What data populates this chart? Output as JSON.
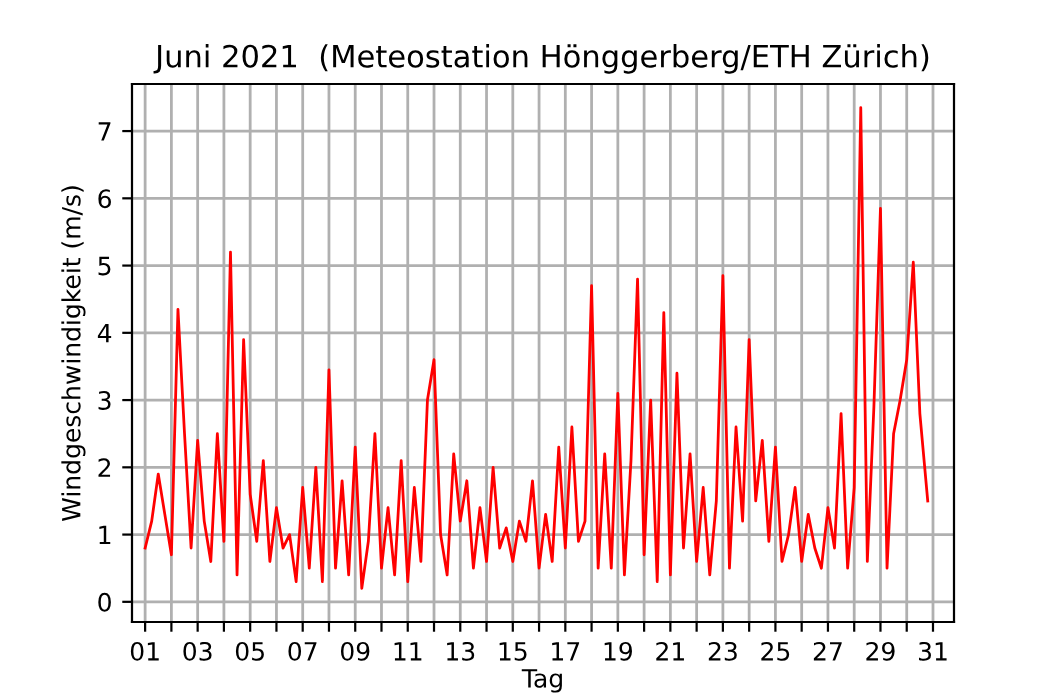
{
  "chart_data": {
    "type": "line",
    "title": "Juni 2021  (Meteostation Hönggerberg/ETH Zürich)",
    "xlabel": "Tag",
    "ylabel": "Windgeschwindigkeit (m/s)",
    "x": [
      1.0,
      1.25,
      1.5,
      1.75,
      2.0,
      2.25,
      2.5,
      2.75,
      3.0,
      3.25,
      3.5,
      3.75,
      4.0,
      4.25,
      4.5,
      4.75,
      5.0,
      5.25,
      5.5,
      5.75,
      6.0,
      6.25,
      6.5,
      6.75,
      7.0,
      7.25,
      7.5,
      7.75,
      8.0,
      8.25,
      8.5,
      8.75,
      9.0,
      9.25,
      9.5,
      9.75,
      10.0,
      10.25,
      10.5,
      10.75,
      11.0,
      11.25,
      11.5,
      11.75,
      12.0,
      12.25,
      12.5,
      12.75,
      13.0,
      13.25,
      13.5,
      13.75,
      14.0,
      14.25,
      14.5,
      14.75,
      15.0,
      15.25,
      15.5,
      15.75,
      16.0,
      16.25,
      16.5,
      16.75,
      17.0,
      17.25,
      17.5,
      17.75,
      18.0,
      18.25,
      18.5,
      18.75,
      19.0,
      19.25,
      19.5,
      19.75,
      20.0,
      20.25,
      20.5,
      20.75,
      21.0,
      21.25,
      21.5,
      21.75,
      22.0,
      22.25,
      22.5,
      22.75,
      23.0,
      23.25,
      23.5,
      23.75,
      24.0,
      24.25,
      24.5,
      24.75,
      25.0,
      25.25,
      25.5,
      25.75,
      26.0,
      26.25,
      26.5,
      26.75,
      27.0,
      27.25,
      27.5,
      27.75,
      28.0,
      28.25,
      28.5,
      28.75,
      29.0,
      29.25,
      29.5,
      29.75,
      30.0,
      30.25,
      30.5,
      30.8
    ],
    "series": [
      {
        "color": "#ff0000",
        "values": [
          0.8,
          1.2,
          1.9,
          1.3,
          0.7,
          4.35,
          2.5,
          0.8,
          2.4,
          1.2,
          0.6,
          2.5,
          0.9,
          5.2,
          0.4,
          3.9,
          1.6,
          0.9,
          2.1,
          0.6,
          1.4,
          0.8,
          1.0,
          0.3,
          1.7,
          0.5,
          2.0,
          0.3,
          3.45,
          0.5,
          1.8,
          0.4,
          2.3,
          0.2,
          0.9,
          2.5,
          0.5,
          1.4,
          0.4,
          2.1,
          0.3,
          1.7,
          0.6,
          3.0,
          3.6,
          1.0,
          0.4,
          2.2,
          1.2,
          1.8,
          0.5,
          1.4,
          0.6,
          2.0,
          0.8,
          1.1,
          0.6,
          1.2,
          0.9,
          1.8,
          0.5,
          1.3,
          0.6,
          2.3,
          0.8,
          2.6,
          0.9,
          1.2,
          4.7,
          0.5,
          2.2,
          0.5,
          3.1,
          0.4,
          2.1,
          4.8,
          0.7,
          3.0,
          0.3,
          4.3,
          0.4,
          3.4,
          0.8,
          2.2,
          0.6,
          1.7,
          0.4,
          1.5,
          4.85,
          0.5,
          2.6,
          1.2,
          3.9,
          1.5,
          2.4,
          0.9,
          2.3,
          0.6,
          1.0,
          1.7,
          0.6,
          1.3,
          0.8,
          0.5,
          1.4,
          0.8,
          2.8,
          0.5,
          1.7,
          7.35,
          0.6,
          2.9,
          5.85,
          0.5,
          2.5,
          3.0,
          3.6,
          5.05,
          2.8,
          1.5
        ]
      }
    ],
    "xlim": [
      0.5,
      31.8
    ],
    "ylim": [
      -0.3,
      7.7
    ],
    "xticks": [
      {
        "value": 1,
        "label": "01"
      },
      {
        "value": 2,
        "label": null
      },
      {
        "value": 3,
        "label": "03"
      },
      {
        "value": 4,
        "label": null
      },
      {
        "value": 5,
        "label": "05"
      },
      {
        "value": 6,
        "label": null
      },
      {
        "value": 7,
        "label": "07"
      },
      {
        "value": 8,
        "label": null
      },
      {
        "value": 9,
        "label": "09"
      },
      {
        "value": 10,
        "label": null
      },
      {
        "value": 11,
        "label": "11"
      },
      {
        "value": 12,
        "label": null
      },
      {
        "value": 13,
        "label": "13"
      },
      {
        "value": 14,
        "label": null
      },
      {
        "value": 15,
        "label": "15"
      },
      {
        "value": 16,
        "label": null
      },
      {
        "value": 17,
        "label": "17"
      },
      {
        "value": 18,
        "label": null
      },
      {
        "value": 19,
        "label": "19"
      },
      {
        "value": 20,
        "label": null
      },
      {
        "value": 21,
        "label": "21"
      },
      {
        "value": 22,
        "label": null
      },
      {
        "value": 23,
        "label": "23"
      },
      {
        "value": 24,
        "label": null
      },
      {
        "value": 25,
        "label": "25"
      },
      {
        "value": 26,
        "label": null
      },
      {
        "value": 27,
        "label": "27"
      },
      {
        "value": 28,
        "label": null
      },
      {
        "value": 29,
        "label": "29"
      },
      {
        "value": 30,
        "label": null
      },
      {
        "value": 31,
        "label": "31"
      }
    ],
    "yticks": [
      0,
      1,
      2,
      3,
      4,
      5,
      6,
      7
    ],
    "grid": true,
    "marker": "none",
    "line_style": "solid"
  }
}
